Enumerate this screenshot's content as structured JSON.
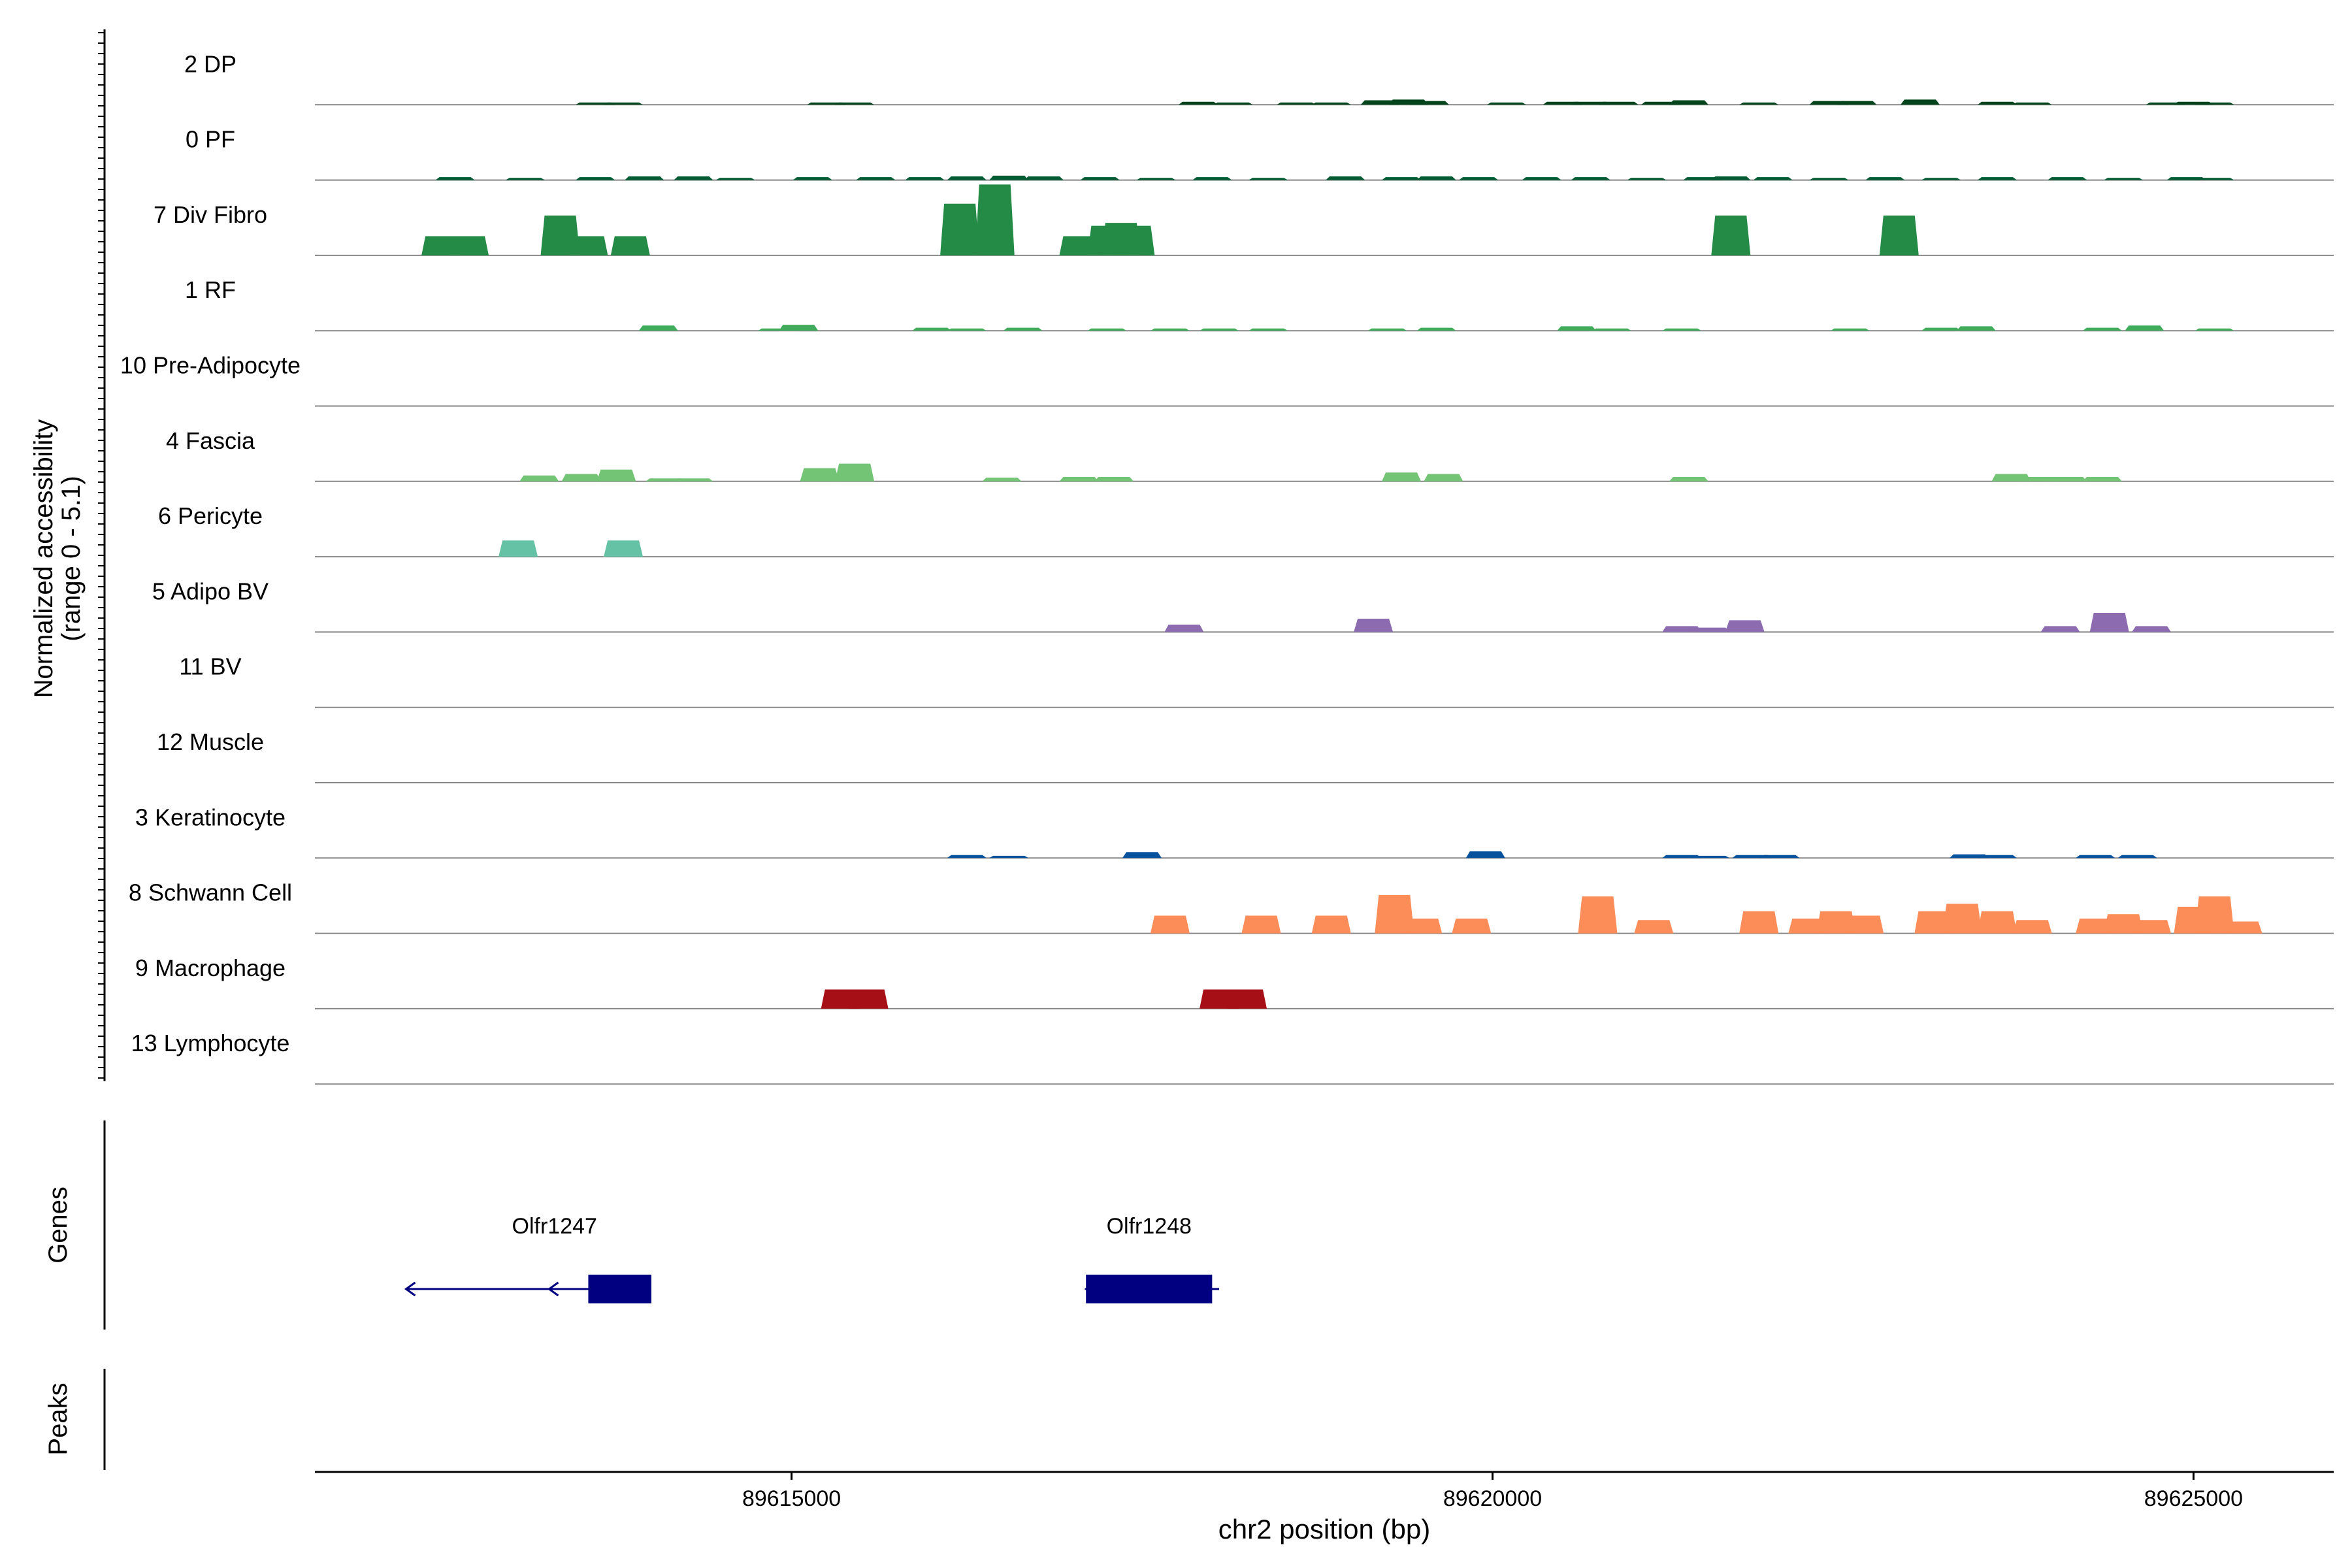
{
  "chart_data": {
    "type": "area",
    "title": "",
    "ylabel": "Normalized accessibility",
    "ylabel_range": "(range 0 - 5.1)",
    "ylim": [
      0,
      5.1
    ],
    "xlabel": "chr2 position (bp)",
    "xlim": [
      89611600,
      89626000
    ],
    "x_ticks": [
      89615000,
      89620000,
      89625000
    ],
    "x_tick_labels": [
      "89615000",
      "89620000",
      "89625000"
    ],
    "panel_labels": {
      "genes": "Genes",
      "peaks": "Peaks"
    },
    "tracks": [
      {
        "name": "2 DP",
        "color": "#00441b",
        "peaks": [
          [
            89613600,
            0.15
          ],
          [
            89613800,
            0.15
          ],
          [
            89615250,
            0.15
          ],
          [
            89615450,
            0.15
          ],
          [
            89617900,
            0.2
          ],
          [
            89618150,
            0.15
          ],
          [
            89618600,
            0.15
          ],
          [
            89618850,
            0.15
          ],
          [
            89619200,
            0.3
          ],
          [
            89619400,
            0.35
          ],
          [
            89619550,
            0.25
          ],
          [
            89620100,
            0.15
          ],
          [
            89620500,
            0.2
          ],
          [
            89620700,
            0.2
          ],
          [
            89620900,
            0.2
          ],
          [
            89621200,
            0.2
          ],
          [
            89621400,
            0.3
          ],
          [
            89621900,
            0.15
          ],
          [
            89622400,
            0.25
          ],
          [
            89622600,
            0.25
          ],
          [
            89623050,
            0.35
          ],
          [
            89623600,
            0.2
          ],
          [
            89623850,
            0.15
          ],
          [
            89624800,
            0.15
          ],
          [
            89625000,
            0.2
          ],
          [
            89625150,
            0.15
          ]
        ]
      },
      {
        "name": "0 PF",
        "color": "#005a32",
        "peaks": [
          [
            89612600,
            0.2
          ],
          [
            89613100,
            0.15
          ],
          [
            89613600,
            0.2
          ],
          [
            89613950,
            0.25
          ],
          [
            89614300,
            0.25
          ],
          [
            89614600,
            0.15
          ],
          [
            89615150,
            0.2
          ],
          [
            89615600,
            0.2
          ],
          [
            89615950,
            0.2
          ],
          [
            89616250,
            0.25
          ],
          [
            89616550,
            0.3
          ],
          [
            89616800,
            0.25
          ],
          [
            89617200,
            0.2
          ],
          [
            89617600,
            0.15
          ],
          [
            89618000,
            0.2
          ],
          [
            89618400,
            0.15
          ],
          [
            89618950,
            0.25
          ],
          [
            89619350,
            0.2
          ],
          [
            89619600,
            0.25
          ],
          [
            89619900,
            0.2
          ],
          [
            89620350,
            0.2
          ],
          [
            89620700,
            0.2
          ],
          [
            89621100,
            0.15
          ],
          [
            89621500,
            0.2
          ],
          [
            89621700,
            0.25
          ],
          [
            89622000,
            0.2
          ],
          [
            89622400,
            0.15
          ],
          [
            89622800,
            0.2
          ],
          [
            89623200,
            0.15
          ],
          [
            89623600,
            0.2
          ],
          [
            89624100,
            0.2
          ],
          [
            89624500,
            0.15
          ],
          [
            89624950,
            0.2
          ],
          [
            89625150,
            0.15
          ]
        ]
      },
      {
        "name": "7 Div Fibro",
        "color": "#238b45",
        "peaks": [
          [
            89612500,
            1.3
          ],
          [
            89612700,
            1.3
          ],
          [
            89613350,
            2.7
          ],
          [
            89613550,
            1.3
          ],
          [
            89613850,
            1.3
          ],
          [
            89616200,
            3.5
          ],
          [
            89616450,
            4.8
          ],
          [
            89617050,
            1.3
          ],
          [
            89617250,
            2.0
          ],
          [
            89617350,
            2.2
          ],
          [
            89617450,
            2.0
          ],
          [
            89621700,
            2.7
          ],
          [
            89622900,
            2.7
          ]
        ]
      },
      {
        "name": "1 RF",
        "color": "#41ab5d",
        "peaks": [
          [
            89614050,
            0.35
          ],
          [
            89614900,
            0.15
          ],
          [
            89615050,
            0.4
          ],
          [
            89616000,
            0.2
          ],
          [
            89616250,
            0.15
          ],
          [
            89616650,
            0.2
          ],
          [
            89617250,
            0.15
          ],
          [
            89617700,
            0.15
          ],
          [
            89618050,
            0.15
          ],
          [
            89618400,
            0.15
          ],
          [
            89619250,
            0.15
          ],
          [
            89619600,
            0.2
          ],
          [
            89620600,
            0.3
          ],
          [
            89620850,
            0.15
          ],
          [
            89621350,
            0.15
          ],
          [
            89622550,
            0.15
          ],
          [
            89623200,
            0.2
          ],
          [
            89623450,
            0.3
          ],
          [
            89624350,
            0.2
          ],
          [
            89624650,
            0.35
          ],
          [
            89625150,
            0.15
          ]
        ]
      },
      {
        "name": "10 Pre-Adipocyte",
        "color": "#74c476",
        "peaks": []
      },
      {
        "name": "4 Fascia",
        "color": "#74c476",
        "peaks": [
          [
            89613200,
            0.4
          ],
          [
            89613500,
            0.5
          ],
          [
            89613750,
            0.8
          ],
          [
            89614100,
            0.2
          ],
          [
            89614300,
            0.2
          ],
          [
            89615200,
            0.9
          ],
          [
            89615450,
            1.2
          ],
          [
            89616500,
            0.25
          ],
          [
            89617050,
            0.3
          ],
          [
            89617300,
            0.3
          ],
          [
            89619350,
            0.6
          ],
          [
            89619650,
            0.5
          ],
          [
            89621400,
            0.3
          ],
          [
            89623700,
            0.5
          ],
          [
            89623900,
            0.3
          ],
          [
            89624100,
            0.3
          ],
          [
            89624350,
            0.3
          ]
        ]
      },
      {
        "name": "6 Pericyte",
        "color": "#66c2a4",
        "peaks": [
          [
            89613050,
            1.1
          ],
          [
            89613800,
            1.1
          ]
        ]
      },
      {
        "name": "5 Adipo BV",
        "color": "#8c6bb1",
        "peaks": [
          [
            89617800,
            0.5
          ],
          [
            89619150,
            0.9
          ],
          [
            89621350,
            0.4
          ],
          [
            89621550,
            0.3
          ],
          [
            89621800,
            0.8
          ],
          [
            89624050,
            0.4
          ],
          [
            89624400,
            1.3
          ],
          [
            89624700,
            0.4
          ]
        ]
      },
      {
        "name": "11 BV",
        "color": "#8c6bb1",
        "peaks": []
      },
      {
        "name": "12 Muscle",
        "color": "#8c6bb1",
        "peaks": []
      },
      {
        "name": "3 Keratinocyte",
        "color": "#08519c",
        "peaks": [
          [
            89616250,
            0.2
          ],
          [
            89616550,
            0.15
          ],
          [
            89617500,
            0.4
          ],
          [
            89619950,
            0.45
          ],
          [
            89621350,
            0.2
          ],
          [
            89621550,
            0.15
          ],
          [
            89621850,
            0.2
          ],
          [
            89622050,
            0.2
          ],
          [
            89623400,
            0.25
          ],
          [
            89623600,
            0.2
          ],
          [
            89624300,
            0.2
          ],
          [
            89624600,
            0.2
          ]
        ]
      },
      {
        "name": "8 Schwann Cell",
        "color": "#fc8d59",
        "peaks": [
          [
            89617700,
            1.2
          ],
          [
            89618350,
            1.2
          ],
          [
            89618850,
            1.2
          ],
          [
            89619300,
            2.6
          ],
          [
            89619500,
            1.0
          ],
          [
            89619850,
            1.0
          ],
          [
            89620750,
            2.5
          ],
          [
            89621150,
            0.9
          ],
          [
            89621900,
            1.5
          ],
          [
            89622250,
            1.0
          ],
          [
            89622450,
            1.5
          ],
          [
            89622650,
            1.2
          ],
          [
            89623150,
            1.5
          ],
          [
            89623350,
            2.0
          ],
          [
            89623600,
            1.5
          ],
          [
            89623850,
            0.9
          ],
          [
            89624300,
            1.0
          ],
          [
            89624500,
            1.3
          ],
          [
            89624700,
            0.9
          ],
          [
            89625000,
            1.8
          ],
          [
            89625150,
            2.5
          ],
          [
            89625350,
            0.8
          ]
        ]
      },
      {
        "name": "9 Macrophage",
        "color": "#a50f15",
        "peaks": [
          [
            89615350,
            1.3
          ],
          [
            89615550,
            1.3
          ],
          [
            89618050,
            1.3
          ],
          [
            89618250,
            1.3
          ]
        ]
      },
      {
        "name": "13 Lymphocyte",
        "color": "#a50f15",
        "peaks": []
      }
    ],
    "genes": [
      {
        "name": "Olfr1247",
        "start": 89612250,
        "end": 89614000,
        "strand": "-",
        "exons": [
          [
            89613550,
            89614000
          ]
        ],
        "color": "#000080"
      },
      {
        "name": "Olfr1248",
        "start": 89617100,
        "end": 89618050,
        "strand": "-",
        "exons": [
          [
            89617100,
            89618000
          ]
        ],
        "color": "#000080"
      }
    ]
  }
}
